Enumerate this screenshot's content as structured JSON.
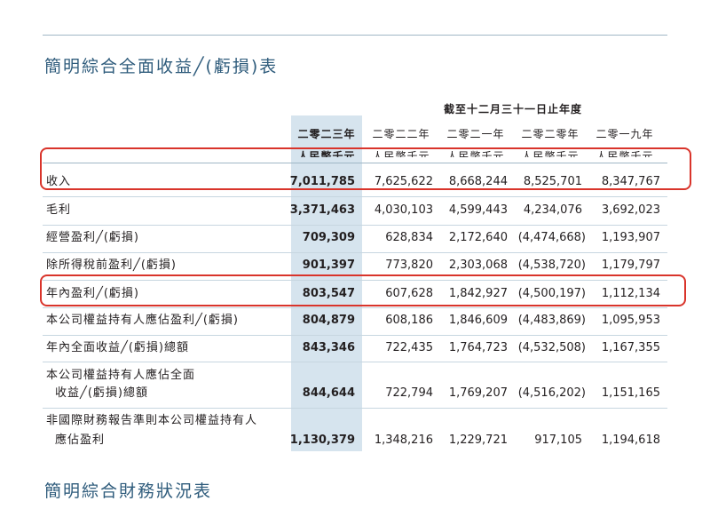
{
  "titles": {
    "income_statement": "簡明綜合全面收益╱(虧損)表",
    "financial_position": "簡明綜合財務狀況表"
  },
  "header": {
    "period": "截至十二月三十一日止年度",
    "years": [
      "二零二三年",
      "二零二二年",
      "二零二一年",
      "二零二零年",
      "二零一九年"
    ],
    "unit": "人民幣千元"
  },
  "rows": [
    {
      "label": "收入",
      "values": [
        "7,011,785",
        "7,625,622",
        "8,668,244",
        "8,525,701",
        "8,347,767"
      ]
    },
    {
      "label": "毛利",
      "values": [
        "3,371,463",
        "4,030,103",
        "4,599,443",
        "4,234,076",
        "3,692,023"
      ]
    },
    {
      "label": "經營盈利╱(虧損)",
      "values": [
        "709,309",
        "628,834",
        "2,172,640",
        "(4,474,668)",
        "1,193,907"
      ]
    },
    {
      "label": "除所得稅前盈利╱(虧損)",
      "values": [
        "901,397",
        "773,820",
        "2,303,068",
        "(4,538,720)",
        "1,179,797"
      ]
    },
    {
      "label": "年內盈利╱(虧損)",
      "values": [
        "803,547",
        "607,628",
        "1,842,927",
        "(4,500,197)",
        "1,112,134"
      ]
    },
    {
      "label": "本公司權益持有人應佔盈利╱(虧損)",
      "values": [
        "804,879",
        "608,186",
        "1,846,609",
        "(4,483,869)",
        "1,095,953"
      ]
    },
    {
      "label": "年內全面收益╱(虧損)總額",
      "values": [
        "843,346",
        "722,435",
        "1,764,723",
        "(4,532,508)",
        "1,167,355"
      ]
    },
    {
      "label": "本公司權益持有人應佔全面",
      "label2": "收益╱(虧損)總額",
      "values": [
        "844,644",
        "722,794",
        "1,769,207",
        "(4,516,202)",
        "1,151,165"
      ]
    },
    {
      "label": "非國際財務報告準則本公司權益持有人",
      "label2": "應佔盈利",
      "values": [
        "1,130,379",
        "1,348,216",
        "1,229,721",
        "917,105",
        "1,194,618"
      ]
    }
  ],
  "colors": {
    "highlight_column": "#d6e4ee",
    "annotation": "#d9342b",
    "title": "#2f5c7c"
  }
}
